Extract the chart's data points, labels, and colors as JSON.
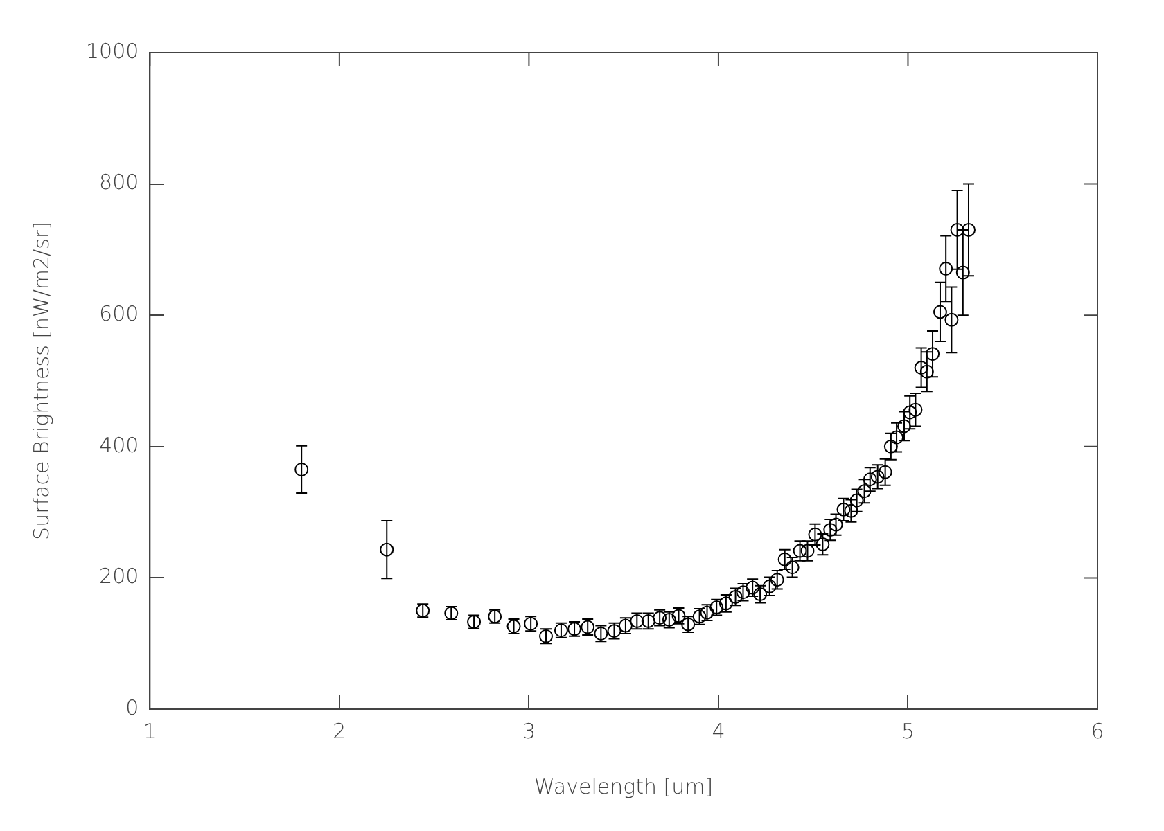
{
  "chart_data": {
    "type": "scatter",
    "xlabel": "Wavelength [um]",
    "ylabel": "Surface Brightness [nW/m2/sr]",
    "xlim": [
      1,
      6
    ],
    "xticks": [
      1,
      2,
      3,
      4,
      5,
      6
    ],
    "ylim": [
      0,
      1000
    ],
    "yticks": [
      0,
      200,
      400,
      600,
      800,
      1000
    ],
    "grid": false,
    "legend": false,
    "marker": "circle",
    "series": [
      {
        "color": "#000000",
        "x": [
          1.8,
          2.25,
          2.44,
          2.59,
          2.71,
          2.82,
          2.92,
          3.01,
          3.09,
          3.17,
          3.24,
          3.31,
          3.38,
          3.45,
          3.51,
          3.57,
          3.63,
          3.69,
          3.74,
          3.79,
          3.84,
          3.9,
          3.94,
          3.99,
          4.04,
          4.09,
          4.13,
          4.18,
          4.22,
          4.27,
          4.31,
          4.35,
          4.39,
          4.43,
          4.47,
          4.51,
          4.55,
          4.59,
          4.62,
          4.66,
          4.7,
          4.73,
          4.77,
          4.8,
          4.84,
          4.88,
          4.91,
          4.94,
          4.98,
          5.01,
          5.04,
          5.07,
          5.1,
          5.13,
          5.17,
          5.2,
          5.23,
          5.26,
          5.29,
          5.32
        ],
        "values": [
          365,
          243,
          150,
          146,
          133,
          141,
          126,
          130,
          111,
          120,
          122,
          125,
          115,
          119,
          127,
          134,
          134,
          139,
          136,
          142,
          129,
          141,
          147,
          155,
          161,
          171,
          178,
          185,
          175,
          187,
          197,
          228,
          216,
          241,
          241,
          266,
          251,
          273,
          281,
          304,
          302,
          318,
          332,
          350,
          354,
          361,
          400,
          414,
          431,
          452,
          456,
          520,
          514,
          541,
          605,
          671,
          593,
          730,
          665,
          730
        ],
        "errors": [
          36,
          44,
          10,
          10,
          10,
          10,
          11,
          11,
          11,
          11,
          11,
          12,
          12,
          12,
          12,
          12,
          12,
          12,
          12,
          12,
          12,
          12,
          12,
          12,
          13,
          13,
          13,
          13,
          13,
          14,
          14,
          15,
          15,
          15,
          15,
          16,
          16,
          16,
          16,
          17,
          17,
          17,
          18,
          18,
          18,
          20,
          20,
          22,
          22,
          25,
          25,
          30,
          30,
          35,
          45,
          50,
          50,
          60,
          65,
          70
        ]
      }
    ]
  }
}
